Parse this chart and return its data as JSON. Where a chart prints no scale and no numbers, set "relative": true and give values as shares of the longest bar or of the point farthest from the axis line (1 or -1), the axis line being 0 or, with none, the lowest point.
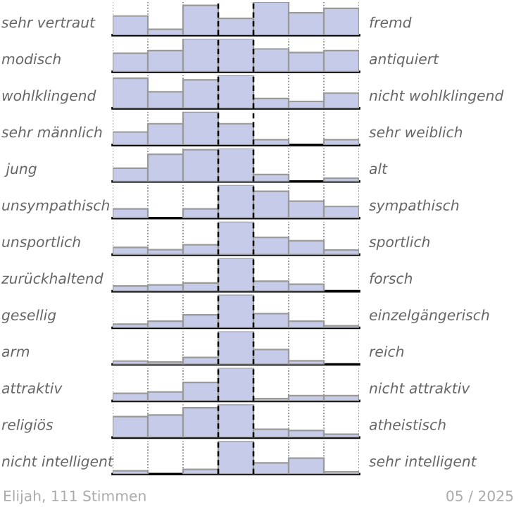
{
  "chart_data": [
    {
      "type": "bar",
      "relative": true,
      "grid": "x",
      "color": "#c5cbe8",
      "categories": [
        null,
        null,
        null,
        null,
        null,
        null,
        null
      ],
      "ylabel": "sehr vertraut",
      "y2label": "fremd",
      "values": [
        0.58,
        0.18,
        0.9,
        0.51,
        1,
        0.68,
        0.81
      ]
    },
    {
      "type": "bar",
      "relative": true,
      "grid": "x",
      "color": "#c5cbe8",
      "categories": [
        null,
        null,
        null,
        null,
        null,
        null,
        null
      ],
      "ylabel": "modisch",
      "y2label": "antiquiert",
      "values": [
        0.56,
        0.64,
        1,
        1,
        0.69,
        0.58,
        0.64
      ]
    },
    {
      "type": "bar",
      "relative": true,
      "grid": "x",
      "color": "#c5cbe8",
      "categories": [
        null,
        null,
        null,
        null,
        null,
        null,
        null
      ],
      "ylabel": "wohlklingend",
      "y2label": "nicht wohlklingend",
      "values": [
        0.91,
        0.5,
        0.86,
        1,
        0.3,
        0.21,
        0.46
      ]
    },
    {
      "type": "bar",
      "relative": true,
      "grid": "x",
      "color": "#c5cbe8",
      "categories": [
        null,
        null,
        null,
        null,
        null,
        null,
        null
      ],
      "ylabel": "sehr männlich",
      "y2label": "sehr weiblich",
      "values": [
        0.39,
        0.64,
        1,
        0.64,
        0.16,
        0,
        0.16
      ]
    },
    {
      "type": "bar",
      "relative": true,
      "grid": "x",
      "color": "#c5cbe8",
      "categories": [
        null,
        null,
        null,
        null,
        null,
        null,
        null
      ],
      "ylabel": " jung",
      "y2label": "alt",
      "values": [
        0.4,
        0.82,
        0.96,
        1,
        0.21,
        0,
        0.1
      ]
    },
    {
      "type": "bar",
      "relative": true,
      "grid": "x",
      "color": "#c5cbe8",
      "categories": [
        null,
        null,
        null,
        null,
        null,
        null,
        null
      ],
      "ylabel": "unsympathisch",
      "y2label": "sympathisch",
      "values": [
        0.28,
        0,
        0.28,
        1,
        0.81,
        0.51,
        0.35
      ]
    },
    {
      "type": "bar",
      "relative": true,
      "grid": "x",
      "color": "#c5cbe8",
      "categories": [
        null,
        null,
        null,
        null,
        null,
        null,
        null
      ],
      "ylabel": "unsportlich",
      "y2label": "sportlich",
      "values": [
        0.22,
        0.15,
        0.3,
        1,
        0.52,
        0.42,
        0.14
      ]
    },
    {
      "type": "bar",
      "relative": true,
      "grid": "x",
      "color": "#c5cbe8",
      "categories": [
        null,
        null,
        null,
        null,
        null,
        null,
        null
      ],
      "ylabel": "zurückhaltend",
      "y2label": "forsch",
      "values": [
        0.16,
        0.19,
        0.25,
        1,
        0.3,
        0.21,
        0
      ]
    },
    {
      "type": "bar",
      "relative": true,
      "grid": "x",
      "color": "#c5cbe8",
      "categories": [
        null,
        null,
        null,
        null,
        null,
        null,
        null
      ],
      "ylabel": "gesellig",
      "y2label": "einzelgängerisch",
      "values": [
        0.11,
        0.2,
        0.39,
        1,
        0.43,
        0.2,
        0.06
      ]
    },
    {
      "type": "bar",
      "relative": true,
      "grid": "x",
      "color": "#c5cbe8",
      "categories": [
        null,
        null,
        null,
        null,
        null,
        null,
        null
      ],
      "ylabel": "arm",
      "y2label": "reich",
      "values": [
        0.1,
        0.07,
        0.21,
        1,
        0.45,
        0.11,
        0
      ]
    },
    {
      "type": "bar",
      "relative": true,
      "grid": "x",
      "color": "#c5cbe8",
      "categories": [
        null,
        null,
        null,
        null,
        null,
        null,
        null
      ],
      "ylabel": "attraktiv",
      "y2label": "nicht attraktiv",
      "values": [
        0.23,
        0.27,
        0.56,
        1,
        0.07,
        0.16,
        0.16
      ]
    },
    {
      "type": "bar",
      "relative": true,
      "grid": "x",
      "color": "#c5cbe8",
      "categories": [
        null,
        null,
        null,
        null,
        null,
        null,
        null
      ],
      "ylabel": "religiös",
      "y2label": "atheistisch",
      "values": [
        0.63,
        0.68,
        0.9,
        1,
        0.25,
        0.21,
        0.1
      ]
    },
    {
      "type": "bar",
      "relative": true,
      "grid": "x",
      "color": "#c5cbe8",
      "categories": [
        null,
        null,
        null,
        null,
        null,
        null,
        null
      ],
      "ylabel": "nicht intelligent",
      "y2label": "sehr intelligent",
      "values": [
        0.1,
        0,
        0.14,
        1,
        0.34,
        0.48,
        0.07
      ],
      "annotations": [
        "Elijah, 111 Stimmen",
        "05 / 2025"
      ]
    }
  ]
}
